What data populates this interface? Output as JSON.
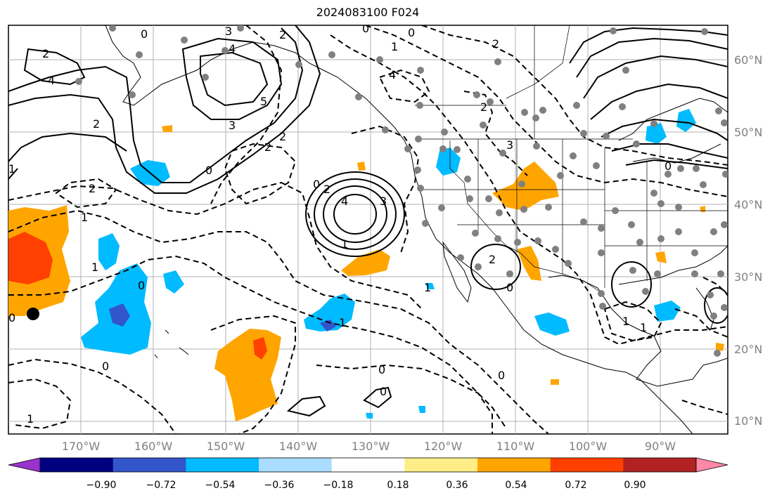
{
  "title": "2024083100 F024",
  "lat_labels": [
    "60°N",
    "50°N",
    "40°N",
    "30°N",
    "20°N",
    "10°N"
  ],
  "lon_labels": [
    "170°W",
    "160°W",
    "150°W",
    "140°W",
    "130°W",
    "120°W",
    "110°W",
    "100°W",
    "90°W"
  ],
  "colorbar": {
    "ticks": [
      "−0.90",
      "−0.72",
      "−0.54",
      "−0.36",
      "−0.18",
      "0.18",
      "0.36",
      "0.54",
      "0.72",
      "0.90"
    ],
    "colors": [
      "#9933cc",
      "#000080",
      "#3355cc",
      "#00bbff",
      "#aaddff",
      "#ffffff",
      "#ffee88",
      "#ffa500",
      "#ff4000",
      "#b22222",
      "#ff88aa"
    ]
  },
  "contour_labels": [
    "0",
    "2",
    "4",
    "2",
    "3",
    "4",
    "5",
    "3",
    "2",
    "1",
    "0",
    "0",
    "2",
    "1",
    "2",
    "3",
    "4",
    "1",
    "2",
    "4",
    "2",
    "0",
    "2",
    "1",
    "0",
    "0",
    "1",
    "0",
    "0",
    "0",
    "1",
    "0",
    "1",
    "2",
    "0",
    "1",
    "1",
    "0",
    "1",
    "2",
    "3",
    "0"
  ]
}
